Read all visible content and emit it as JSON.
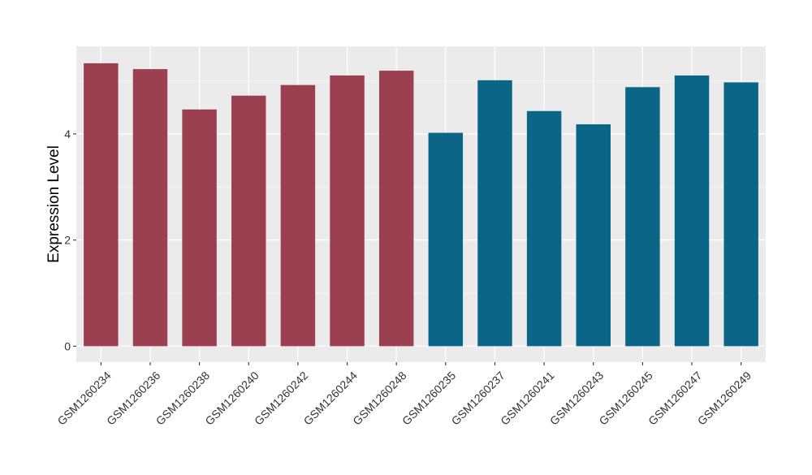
{
  "chart_data": {
    "type": "bar",
    "title": "",
    "xlabel": "",
    "ylabel": "Expression Level",
    "ylim": [
      -0.3,
      5.65
    ],
    "yticks": [
      0,
      2,
      4
    ],
    "grid": true,
    "legend": "none",
    "background_color": "#ebebeb",
    "gridline_color": "#ffffff",
    "categories": [
      "GSM1260234",
      "GSM1260236",
      "GSM1260238",
      "GSM1260240",
      "GSM1260242",
      "GSM1260244",
      "GSM1260248",
      "GSM1260235",
      "GSM1260237",
      "GSM1260241",
      "GSM1260243",
      "GSM1260245",
      "GSM1260247",
      "GSM1260249"
    ],
    "values": [
      5.33,
      5.22,
      4.46,
      4.72,
      4.92,
      5.1,
      5.19,
      4.02,
      5.01,
      4.43,
      4.18,
      4.88,
      5.1,
      4.97
    ],
    "group_colors": {
      "group1": "#9a404e",
      "group2": "#0b6586"
    },
    "bar_groups": [
      "group1",
      "group1",
      "group1",
      "group1",
      "group1",
      "group1",
      "group1",
      "group2",
      "group2",
      "group2",
      "group2",
      "group2",
      "group2",
      "group2"
    ]
  }
}
